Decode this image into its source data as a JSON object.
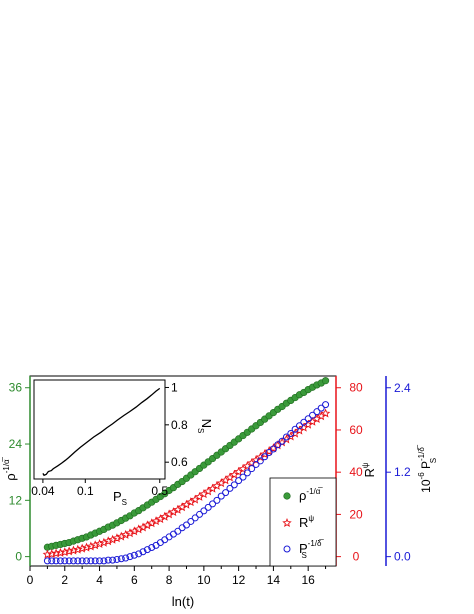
{
  "chart_data": [
    {
      "type": "scatter",
      "xlabel": "ln(t)",
      "x_ticks": [
        0,
        2,
        4,
        6,
        8,
        10,
        12,
        14,
        16
      ],
      "xlim": [
        0,
        17.6
      ],
      "axes": {
        "left": {
          "label_base": "ρ",
          "label_exp": "-1/α̅",
          "color": "#2e8b2e",
          "ticks": [
            0,
            12,
            24,
            36
          ],
          "ylim": [
            -2,
            38.5
          ]
        },
        "right1": {
          "label_base": "R",
          "label_exp": "ψ",
          "color": "#e8141a",
          "ticks": [
            0,
            20,
            40,
            60,
            80
          ],
          "ylim": [
            -4.44,
            85.56
          ]
        },
        "right2": {
          "label_base": "10",
          "label_mid": "-6",
          "label_rest": " P",
          "label_exp": "-1/δ̅",
          "label_sub": "S",
          "color": "#1a1ad6",
          "ticks": [
            "0.0",
            "1.2",
            "2.4"
          ],
          "tick_values": [
            0,
            1.2,
            2.4
          ],
          "ylim": [
            -0.133,
            2.567
          ]
        }
      },
      "series": [
        {
          "name": "ρ^(-1/α̅)",
          "axis": "left",
          "marker": "filled-circle",
          "color": "#3a9a3a",
          "x": [
            1,
            1.25,
            1.5,
            1.75,
            2,
            2.25,
            2.5,
            2.75,
            3,
            3.25,
            3.5,
            3.75,
            4,
            4.25,
            4.5,
            4.75,
            5,
            5.25,
            5.5,
            5.75,
            6,
            6.25,
            6.5,
            6.75,
            7,
            7.25,
            7.5,
            7.75,
            8,
            8.25,
            8.5,
            8.75,
            9,
            9.25,
            9.5,
            9.75,
            10,
            10.25,
            10.5,
            10.75,
            11,
            11.25,
            11.5,
            11.75,
            12,
            12.25,
            12.5,
            12.75,
            13,
            13.25,
            13.5,
            13.75,
            14,
            14.25,
            14.5,
            14.75,
            15,
            15.25,
            15.5,
            15.75,
            16,
            16.25,
            16.5,
            16.75,
            17
          ],
          "y": [
            2.0,
            2.2,
            2.4,
            2.6,
            2.8,
            3.0,
            3.3,
            3.6,
            3.9,
            4.2,
            4.6,
            5.0,
            5.4,
            5.8,
            6.3,
            6.7,
            7.2,
            7.7,
            8.2,
            8.7,
            9.3,
            9.8,
            10.4,
            11.0,
            11.6,
            12.2,
            12.8,
            13.4,
            14.1,
            14.7,
            15.4,
            16.0,
            16.7,
            17.4,
            18.1,
            18.8,
            19.5,
            20.2,
            20.9,
            21.6,
            22.3,
            23.0,
            23.7,
            24.4,
            25.1,
            25.8,
            26.5,
            27.2,
            27.9,
            28.6,
            29.3,
            30.0,
            30.7,
            31.4,
            32.0,
            32.7,
            33.3,
            33.9,
            34.5,
            35.0,
            35.6,
            36.1,
            36.6,
            37.0,
            37.5
          ]
        },
        {
          "name": "R^ψ",
          "axis": "right1",
          "marker": "star",
          "color": "#e8141a",
          "x": [
            1,
            1.25,
            1.5,
            1.75,
            2,
            2.25,
            2.5,
            2.75,
            3,
            3.25,
            3.5,
            3.75,
            4,
            4.25,
            4.5,
            4.75,
            5,
            5.25,
            5.5,
            5.75,
            6,
            6.25,
            6.5,
            6.75,
            7,
            7.25,
            7.5,
            7.75,
            8,
            8.25,
            8.5,
            8.75,
            9,
            9.25,
            9.5,
            9.75,
            10,
            10.25,
            10.5,
            10.75,
            11,
            11.25,
            11.5,
            11.75,
            12,
            12.25,
            12.5,
            12.75,
            13,
            13.25,
            13.5,
            13.75,
            14,
            14.25,
            14.5,
            14.75,
            15,
            15.25,
            15.5,
            15.75,
            16,
            16.25,
            16.5,
            16.75,
            17
          ],
          "y": [
            1.0,
            1.2,
            1.5,
            1.8,
            2.1,
            2.5,
            2.9,
            3.3,
            3.8,
            4.3,
            4.8,
            5.4,
            6.0,
            6.6,
            7.3,
            8.0,
            8.7,
            9.5,
            10.3,
            11.1,
            12.0,
            12.9,
            13.8,
            14.8,
            15.8,
            16.8,
            17.8,
            18.9,
            20.0,
            21.1,
            22.2,
            23.4,
            24.6,
            25.8,
            27.0,
            28.3,
            29.6,
            30.9,
            32.2,
            33.5,
            34.8,
            36.1,
            37.5,
            38.8,
            40.2,
            41.5,
            42.9,
            44.3,
            45.7,
            47.1,
            48.5,
            49.9,
            51.3,
            52.7,
            54.1,
            55.5,
            56.9,
            58.3,
            59.7,
            61.1,
            62.5,
            63.9,
            65.2,
            66.5,
            67.8
          ]
        },
        {
          "name": "P_S^(-1/δ̅)",
          "axis": "right2",
          "marker": "open-circle",
          "color": "#1a1ad6",
          "x": [
            1,
            1.25,
            1.5,
            1.75,
            2,
            2.25,
            2.5,
            2.75,
            3,
            3.25,
            3.5,
            3.75,
            4,
            4.25,
            4.5,
            4.75,
            5,
            5.25,
            5.5,
            5.75,
            6,
            6.25,
            6.5,
            6.75,
            7,
            7.25,
            7.5,
            7.75,
            8,
            8.25,
            8.5,
            8.75,
            9,
            9.25,
            9.5,
            9.75,
            10,
            10.25,
            10.5,
            10.75,
            11,
            11.25,
            11.5,
            11.75,
            12,
            12.25,
            12.5,
            12.75,
            13,
            13.25,
            13.5,
            13.75,
            14,
            14.25,
            14.5,
            14.75,
            15,
            15.25,
            15.5,
            15.75,
            16,
            16.25,
            16.5,
            16.75,
            17
          ],
          "y": [
            -0.06,
            -0.06,
            -0.06,
            -0.06,
            -0.06,
            -0.06,
            -0.06,
            -0.06,
            -0.06,
            -0.06,
            -0.06,
            -0.06,
            -0.06,
            -0.06,
            -0.05,
            -0.05,
            -0.04,
            -0.03,
            -0.02,
            0.0,
            0.02,
            0.04,
            0.07,
            0.1,
            0.13,
            0.16,
            0.2,
            0.24,
            0.28,
            0.32,
            0.36,
            0.41,
            0.45,
            0.5,
            0.55,
            0.6,
            0.65,
            0.7,
            0.75,
            0.8,
            0.86,
            0.91,
            0.97,
            1.02,
            1.08,
            1.13,
            1.19,
            1.25,
            1.31,
            1.36,
            1.42,
            1.48,
            1.53,
            1.59,
            1.64,
            1.7,
            1.75,
            1.81,
            1.86,
            1.91,
            1.96,
            2.01,
            2.06,
            2.11,
            2.16
          ]
        }
      ],
      "legend": {
        "position": "bottom-right",
        "entries": [
          {
            "base": "ρ",
            "exp": "-1/α̅",
            "sub": ""
          },
          {
            "base": "R",
            "exp": "ψ",
            "sub": ""
          },
          {
            "base": "P",
            "exp": "-1/δ̅",
            "sub": "S"
          }
        ]
      }
    },
    {
      "type": "line",
      "role": "inset",
      "xscale": "log",
      "xlabel_base": "P",
      "xlabel_sub": "S",
      "ylabel_base": "N",
      "ylabel_sub": "S",
      "color": "#000000",
      "x_ticks": [
        "0.04",
        "0.1",
        "0.5"
      ],
      "x_tick_values": [
        0.04,
        0.1,
        0.5
      ],
      "xlim": [
        0.033,
        0.56
      ],
      "y_ticks": [
        "0.6",
        "0.8",
        "1"
      ],
      "y_tick_values": [
        0.6,
        0.8,
        1.0
      ],
      "ylim": [
        0.51,
        1.04
      ],
      "x": [
        0.04,
        0.041,
        0.043,
        0.045,
        0.048,
        0.05,
        0.055,
        0.06,
        0.065,
        0.07,
        0.08,
        0.09,
        0.1,
        0.12,
        0.14,
        0.16,
        0.18,
        0.2,
        0.23,
        0.26,
        0.3,
        0.34,
        0.38,
        0.42,
        0.46,
        0.5
      ],
      "y": [
        0.54,
        0.53,
        0.535,
        0.55,
        0.555,
        0.565,
        0.58,
        0.595,
        0.61,
        0.625,
        0.655,
        0.68,
        0.7,
        0.735,
        0.76,
        0.785,
        0.805,
        0.825,
        0.85,
        0.87,
        0.895,
        0.92,
        0.94,
        0.96,
        0.98,
        0.995
      ]
    }
  ]
}
